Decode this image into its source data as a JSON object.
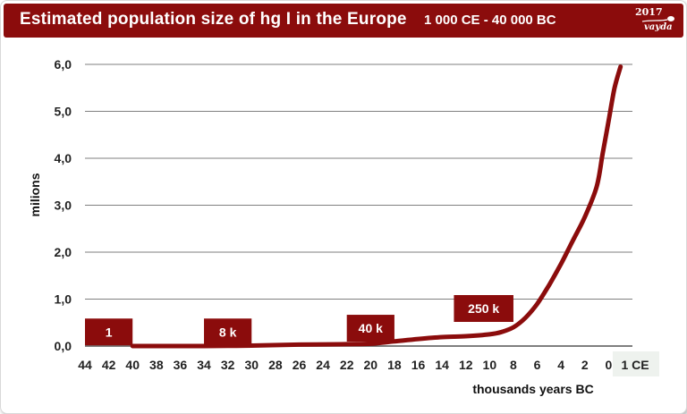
{
  "header": {
    "title": "Estimated population  size of hg I in the Europe",
    "range": "1 000 CE - 40 000 BC",
    "logo_year": "2017",
    "logo_name": "vayda"
  },
  "colors": {
    "brand": "#8b0c0c",
    "grid": "#7f7f7f",
    "tick_box": "#eef2ee"
  },
  "chart_data": {
    "type": "line",
    "ylabel": "milions",
    "xlabel": "thousands years BC",
    "ylim": [
      0,
      6
    ],
    "y_ticks": [
      "0,0",
      "1,0",
      "2,0",
      "3,0",
      "4,0",
      "5,0",
      "6,0"
    ],
    "x_ticks": [
      "44",
      "42",
      "40",
      "38",
      "36",
      "34",
      "32",
      "30",
      "28",
      "26",
      "24",
      "22",
      "20",
      "18",
      "16",
      "14",
      "12",
      "10",
      "8",
      "6",
      "4",
      "2",
      "0",
      "1 CE"
    ],
    "x_axis_direction": "decreasing thousands of years BC, left to right",
    "grid": true,
    "series": [
      {
        "color": "#8b0c0c",
        "points": [
          [
            40,
            0
          ],
          [
            34,
            0
          ],
          [
            30,
            0.01
          ],
          [
            26,
            0.03
          ],
          [
            22,
            0.04
          ],
          [
            20,
            0.05
          ],
          [
            18,
            0.1
          ],
          [
            16,
            0.15
          ],
          [
            14,
            0.19
          ],
          [
            12,
            0.21
          ],
          [
            10,
            0.25
          ],
          [
            9,
            0.3
          ],
          [
            8,
            0.4
          ],
          [
            7,
            0.6
          ],
          [
            6,
            0.9
          ],
          [
            5,
            1.3
          ],
          [
            4,
            1.75
          ],
          [
            3,
            2.25
          ],
          [
            2,
            2.75
          ],
          [
            1,
            3.4
          ],
          [
            0.5,
            4.1
          ],
          [
            0,
            4.8
          ],
          [
            -0.5,
            5.5
          ],
          [
            -1,
            5.95
          ]
        ]
      }
    ],
    "annotations": [
      {
        "text": "1",
        "x_from": 44,
        "x_to": 40,
        "y": 0.3
      },
      {
        "text": "8 k",
        "x_from": 34,
        "x_to": 30,
        "y": 0.3
      },
      {
        "text": "40 k",
        "x_from": 22,
        "x_to": 18,
        "y": 0.38
      },
      {
        "text": "250 k",
        "x_from": 13,
        "x_to": 8,
        "y": 0.8
      }
    ]
  }
}
